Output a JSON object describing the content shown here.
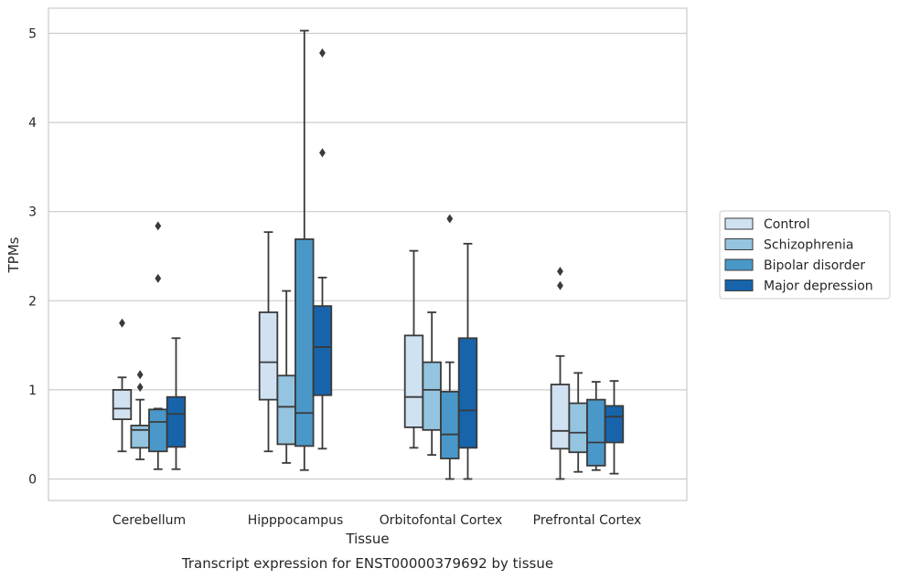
{
  "chart_data": {
    "type": "box",
    "caption": "Transcript expression for ENST00000379692 by tissue",
    "xlabel": "Tissue",
    "ylabel": "TPMs",
    "ylim": [
      -0.25,
      5.3
    ],
    "yticks": [
      0,
      1,
      2,
      3,
      4,
      5
    ],
    "ytick_labels": [
      "0",
      "1",
      "2",
      "3",
      "4",
      "5"
    ],
    "grid": true,
    "legend_position": "right",
    "categories": [
      "Cerebellum",
      "Hipppocampus",
      "Orbitofontal Cortex",
      "Prefrontal Cortex"
    ],
    "series": [
      {
        "name": "Control",
        "color": "#d0e1f2",
        "boxes": [
          {
            "whislo": 0.31,
            "q1": 0.67,
            "med": 0.79,
            "q3": 1.0,
            "whishi": 1.14,
            "fliers": [
              1.75
            ]
          },
          {
            "whislo": 0.31,
            "q1": 0.89,
            "med": 1.31,
            "q3": 1.87,
            "whishi": 2.77,
            "fliers": []
          },
          {
            "whislo": 0.35,
            "q1": 0.58,
            "med": 0.92,
            "q3": 1.61,
            "whishi": 2.56,
            "fliers": []
          },
          {
            "whislo": 0.0,
            "q1": 0.34,
            "med": 0.54,
            "q3": 1.06,
            "whishi": 1.38,
            "fliers": [
              2.17,
              2.33
            ]
          }
        ]
      },
      {
        "name": "Schizophrenia",
        "color": "#94c4df",
        "boxes": [
          {
            "whislo": 0.22,
            "q1": 0.35,
            "med": 0.55,
            "q3": 0.6,
            "whishi": 0.89,
            "fliers": [
              1.03,
              1.17
            ]
          },
          {
            "whislo": 0.18,
            "q1": 0.39,
            "med": 0.81,
            "q3": 1.16,
            "whishi": 2.11,
            "fliers": []
          },
          {
            "whislo": 0.27,
            "q1": 0.55,
            "med": 1.0,
            "q3": 1.31,
            "whishi": 1.87,
            "fliers": []
          },
          {
            "whislo": 0.08,
            "q1": 0.3,
            "med": 0.52,
            "q3": 0.85,
            "whishi": 1.19,
            "fliers": []
          }
        ]
      },
      {
        "name": "Bipolar disorder",
        "color": "#4a98c9",
        "boxes": [
          {
            "whislo": 0.11,
            "q1": 0.31,
            "med": 0.64,
            "q3": 0.78,
            "whishi": 0.79,
            "fliers": [
              2.25,
              2.84
            ]
          },
          {
            "whislo": 0.1,
            "q1": 0.37,
            "med": 0.74,
            "q3": 2.69,
            "whishi": 5.03,
            "fliers": []
          },
          {
            "whislo": 0.0,
            "q1": 0.23,
            "med": 0.5,
            "q3": 0.98,
            "whishi": 1.31,
            "fliers": [
              2.92
            ]
          },
          {
            "whislo": 0.1,
            "q1": 0.15,
            "med": 0.41,
            "q3": 0.89,
            "whishi": 1.09,
            "fliers": []
          }
        ]
      },
      {
        "name": "Major depression",
        "color": "#1764ab",
        "boxes": [
          {
            "whislo": 0.11,
            "q1": 0.36,
            "med": 0.73,
            "q3": 0.92,
            "whishi": 1.58,
            "fliers": []
          },
          {
            "whislo": 0.34,
            "q1": 0.94,
            "med": 1.48,
            "q3": 1.94,
            "whishi": 2.26,
            "fliers": [
              4.78,
              3.66
            ]
          },
          {
            "whislo": 0.0,
            "q1": 0.35,
            "med": 0.77,
            "q3": 1.58,
            "whishi": 2.64,
            "fliers": []
          },
          {
            "whislo": 0.06,
            "q1": 0.41,
            "med": 0.7,
            "q3": 0.82,
            "whishi": 1.1,
            "fliers": []
          }
        ]
      }
    ]
  }
}
